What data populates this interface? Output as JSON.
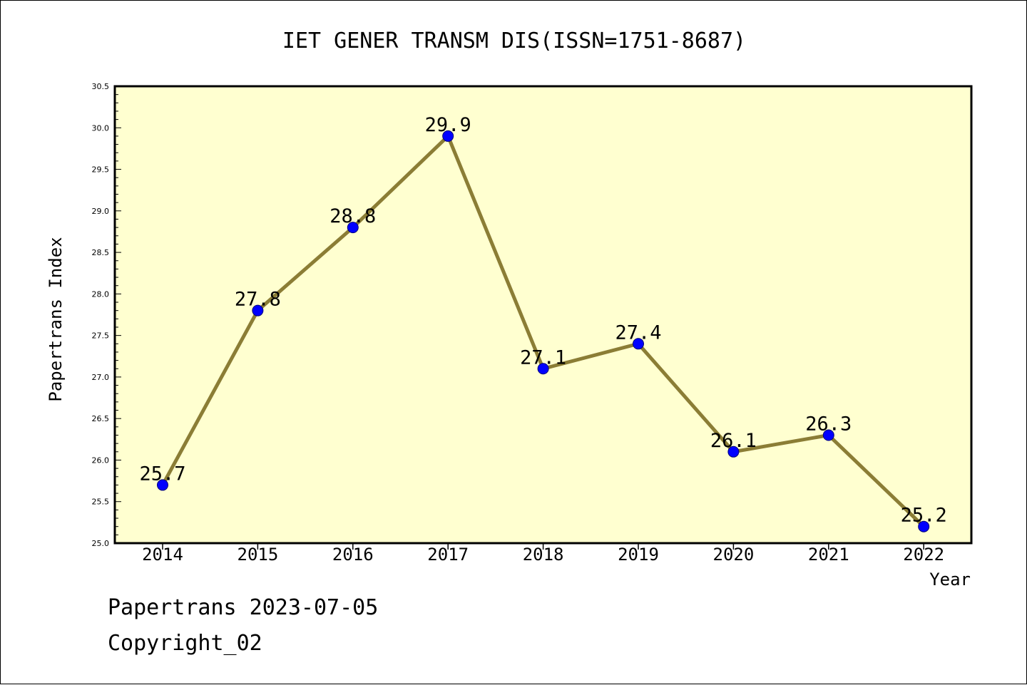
{
  "chart_data": {
    "type": "line",
    "title": "IET GENER TRANSM DIS(ISSN=1751-8687)",
    "xlabel": "Year",
    "ylabel": "Papertrans Index",
    "categories": [
      "2014",
      "2015",
      "2016",
      "2017",
      "2018",
      "2019",
      "2020",
      "2021",
      "2022"
    ],
    "series": [
      {
        "values": [
          25.7,
          27.8,
          28.8,
          29.9,
          27.1,
          27.4,
          26.1,
          26.3,
          25.2
        ]
      }
    ],
    "data_labels": [
      "25.7",
      "27.8",
      "28.8",
      "29.9",
      "27.1",
      "27.4",
      "26.1",
      "26.3",
      "25.2"
    ],
    "ylim": [
      25.0,
      30.5
    ],
    "yticks": [
      "25.0",
      "25.5",
      "26.0",
      "26.5",
      "27.0",
      "27.5",
      "28.0",
      "28.5",
      "29.0",
      "29.5",
      "30.0",
      "30.5"
    ],
    "grid": false,
    "legend": "none",
    "colors": {
      "plot_background": "#ffffd0",
      "line": "#8b7d35",
      "marker_fill": "#0000ff",
      "marker_stroke": "#00007a"
    }
  },
  "footer": {
    "line1": "Papertrans 2023-07-05",
    "line2": "Copyright_02"
  }
}
